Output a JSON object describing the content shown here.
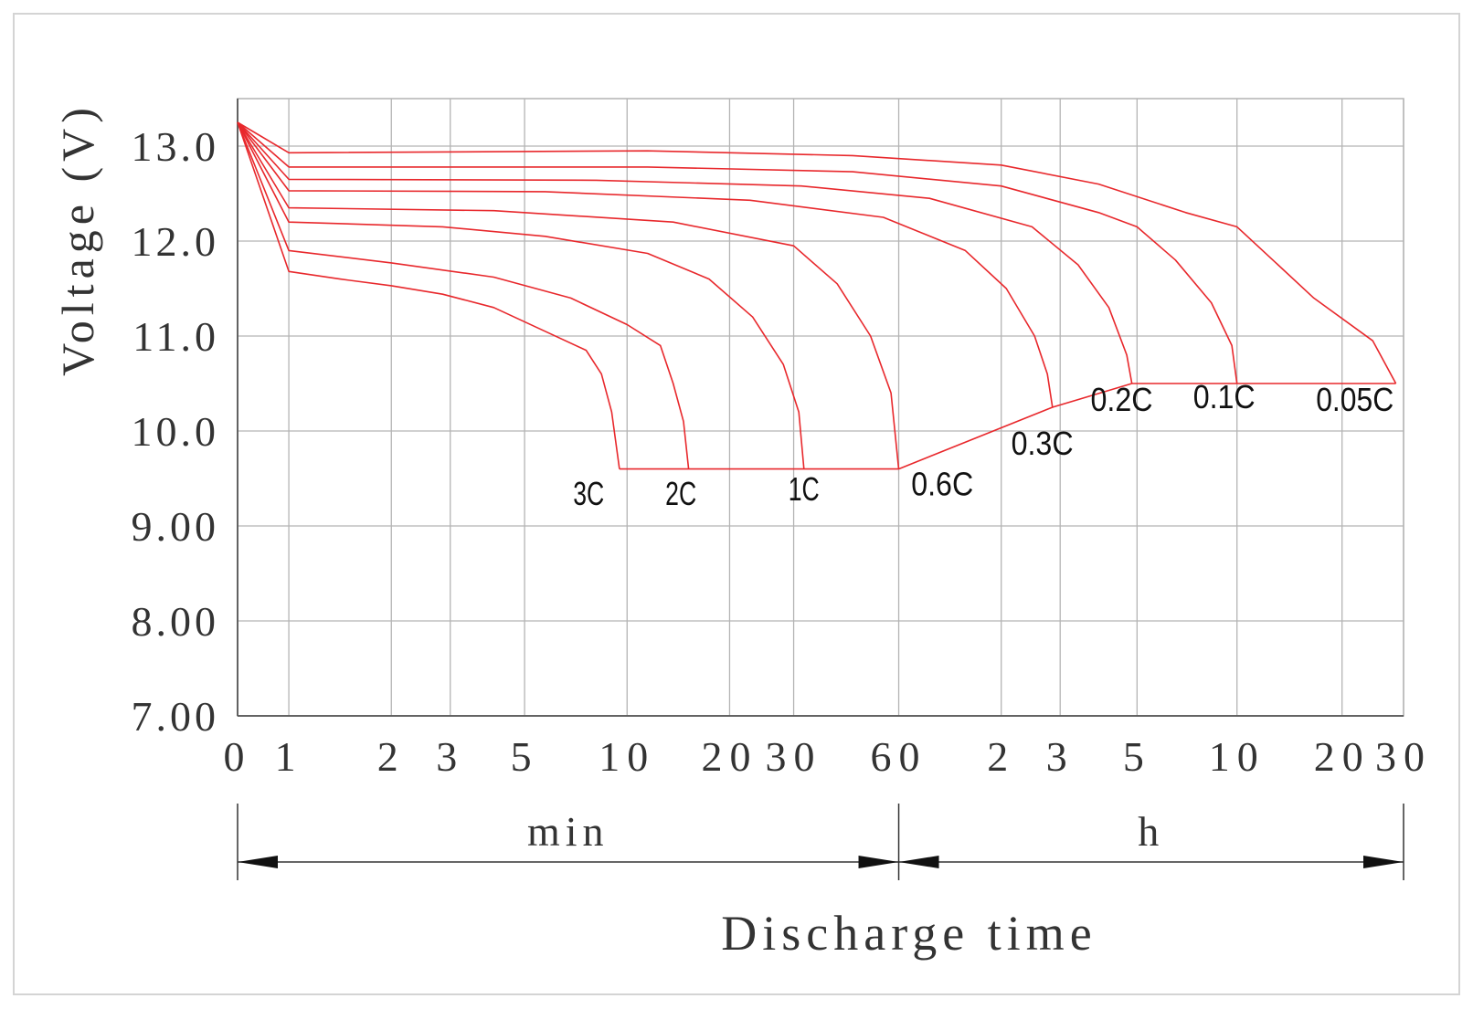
{
  "colors": {
    "curve": "#e8282c",
    "grid": "#b4b4b4",
    "axis": "#555555",
    "text": "#333333",
    "frame": "#d4d4d4"
  },
  "chart_data": {
    "type": "line",
    "title": "",
    "ylabel": "Voltage (V)",
    "xlabel": "Discharge time",
    "ylim": [
      7.0,
      13.5
    ],
    "y_ticks": [
      {
        "value": 13.0,
        "label": "13.0"
      },
      {
        "value": 12.0,
        "label": "12.0"
      },
      {
        "value": 11.0,
        "label": "11.0"
      },
      {
        "value": 10.0,
        "label": "10.0"
      },
      {
        "value": 9.0,
        "label": "9.00"
      },
      {
        "value": 8.0,
        "label": "8.00"
      },
      {
        "value": 7.0,
        "label": "7.00"
      }
    ],
    "x_axis": {
      "scale": "log-like (0 at origin, then minutes 1–60, then hours 1–30)",
      "ticks": [
        {
          "label": "0",
          "t": 0
        },
        {
          "label": "1",
          "t": 1
        },
        {
          "label": "2",
          "t": 3
        },
        {
          "label": "3",
          "t": 4.15
        },
        {
          "label": "5",
          "t": 5.6
        },
        {
          "label": "10",
          "t": 7.6
        },
        {
          "label": "20",
          "t": 9.6
        },
        {
          "label": "30",
          "t": 10.85
        },
        {
          "label": "60",
          "t": 12.9
        },
        {
          "label": "2",
          "t": 14.9
        },
        {
          "label": "3",
          "t": 16.05
        },
        {
          "label": "5",
          "t": 17.55
        },
        {
          "label": "10",
          "t": 19.5
        },
        {
          "label": "20",
          "t": 21.55
        },
        {
          "label": "30",
          "t": 22.75
        }
      ],
      "unit_sections": [
        {
          "label": "min",
          "from": "0",
          "to": "60"
        },
        {
          "label": "h",
          "from": "60",
          "to": "30"
        }
      ]
    },
    "series": [
      {
        "name": "3C",
        "points": [
          [
            0,
            13.25
          ],
          [
            1,
            11.68
          ],
          [
            2,
            11.6
          ],
          [
            3,
            11.53
          ],
          [
            4,
            11.44
          ],
          [
            5,
            11.3
          ],
          [
            6,
            11.05
          ],
          [
            6.8,
            10.85
          ],
          [
            7.1,
            10.6
          ],
          [
            7.3,
            10.2
          ],
          [
            7.45,
            9.6
          ]
        ]
      },
      {
        "name": "2C",
        "points": [
          [
            0,
            13.25
          ],
          [
            1,
            11.9
          ],
          [
            3,
            11.77
          ],
          [
            5,
            11.62
          ],
          [
            6.5,
            11.4
          ],
          [
            7.6,
            11.12
          ],
          [
            8.25,
            10.9
          ],
          [
            8.5,
            10.5
          ],
          [
            8.7,
            10.1
          ],
          [
            8.8,
            9.6
          ]
        ]
      },
      {
        "name": "1C",
        "points": [
          [
            0,
            13.25
          ],
          [
            1,
            12.2
          ],
          [
            4,
            12.15
          ],
          [
            6,
            12.05
          ],
          [
            8,
            11.87
          ],
          [
            9.2,
            11.6
          ],
          [
            10.05,
            11.2
          ],
          [
            10.65,
            10.7
          ],
          [
            10.95,
            10.2
          ],
          [
            11.05,
            9.6
          ]
        ]
      },
      {
        "name": "0.6C",
        "points": [
          [
            0,
            13.25
          ],
          [
            1,
            12.35
          ],
          [
            5,
            12.32
          ],
          [
            8.5,
            12.2
          ],
          [
            10.85,
            11.95
          ],
          [
            11.7,
            11.55
          ],
          [
            12.35,
            11.0
          ],
          [
            12.75,
            10.4
          ],
          [
            12.9,
            9.6
          ]
        ]
      },
      {
        "name": "0.3C",
        "points": [
          [
            0,
            13.25
          ],
          [
            1,
            12.53
          ],
          [
            6,
            12.52
          ],
          [
            10,
            12.43
          ],
          [
            12.6,
            12.25
          ],
          [
            14.2,
            11.9
          ],
          [
            15,
            11.5
          ],
          [
            15.55,
            11.0
          ],
          [
            15.8,
            10.6
          ],
          [
            15.9,
            10.25
          ]
        ]
      },
      {
        "name": "0.2C",
        "points": [
          [
            0,
            13.25
          ],
          [
            1,
            12.65
          ],
          [
            7,
            12.64
          ],
          [
            11,
            12.58
          ],
          [
            13.5,
            12.45
          ],
          [
            15.5,
            12.15
          ],
          [
            16.4,
            11.75
          ],
          [
            17,
            11.3
          ],
          [
            17.35,
            10.8
          ],
          [
            17.45,
            10.5
          ]
        ]
      },
      {
        "name": "0.1C",
        "points": [
          [
            0,
            13.25
          ],
          [
            1,
            12.78
          ],
          [
            8,
            12.78
          ],
          [
            12,
            12.73
          ],
          [
            14.9,
            12.58
          ],
          [
            16.8,
            12.3
          ],
          [
            17.55,
            12.15
          ],
          [
            18.3,
            11.8
          ],
          [
            19,
            11.35
          ],
          [
            19.4,
            10.9
          ],
          [
            19.5,
            10.5
          ]
        ]
      },
      {
        "name": "0.05C",
        "points": [
          [
            0,
            13.25
          ],
          [
            1,
            12.93
          ],
          [
            8,
            12.95
          ],
          [
            12,
            12.9
          ],
          [
            14.9,
            12.8
          ],
          [
            16.8,
            12.6
          ],
          [
            18.5,
            12.3
          ],
          [
            19.5,
            12.15
          ],
          [
            20.2,
            11.8
          ],
          [
            21,
            11.4
          ],
          [
            22.15,
            10.95
          ],
          [
            22.6,
            10.5
          ]
        ]
      }
    ],
    "cutoff_lines": [
      {
        "points": [
          [
            7.45,
            9.6
          ],
          [
            12.9,
            9.6
          ]
        ]
      },
      {
        "points": [
          [
            12.9,
            9.6
          ],
          [
            15.9,
            10.25
          ],
          [
            17.45,
            10.5
          ]
        ]
      },
      {
        "points": [
          [
            17.45,
            10.5
          ],
          [
            22.6,
            10.5
          ]
        ]
      }
    ],
    "annotations": [
      {
        "text": "3C",
        "t": 6.85,
        "v": 9.22
      },
      {
        "text": "2C",
        "t": 8.65,
        "v": 9.22
      },
      {
        "text": "1C",
        "t": 11.05,
        "v": 9.27
      },
      {
        "text": "0.6C",
        "t": 13.75,
        "v": 9.32
      },
      {
        "text": "0.3C",
        "t": 15.7,
        "v": 9.75
      },
      {
        "text": "0.2C",
        "t": 17.25,
        "v": 10.21
      },
      {
        "text": "0.1C",
        "t": 19.25,
        "v": 10.24
      },
      {
        "text": "0.05C",
        "t": 21.8,
        "v": 10.21
      }
    ],
    "grid": true,
    "legend": "none (series labeled at curve ends)"
  }
}
